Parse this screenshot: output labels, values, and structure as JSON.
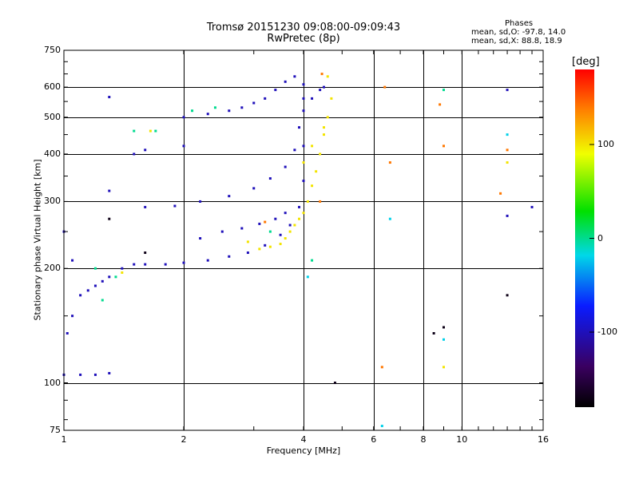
{
  "header": {
    "title_line1": "Tromsø 20151230 09:08:00-09:09:43",
    "title_line2": "RwPretec (8p)"
  },
  "stats": {
    "label": "Phases",
    "line_o": "mean, sd,O: -97.8, 14.0",
    "line_x": "mean, sd,X:  88.8, 18.9"
  },
  "chart_data": {
    "type": "scatter",
    "xlabel": "Frequency [MHz]",
    "ylabel": "Stationary phase Virtual Height [km]",
    "x_scale": "log",
    "y_scale": "log",
    "xlim": [
      1,
      16
    ],
    "ylim": [
      75,
      750
    ],
    "x_ticks": [
      1,
      2,
      4,
      6,
      8,
      10,
      16
    ],
    "x_tick_labels": [
      "1",
      "2",
      "4",
      "6",
      "8",
      "10",
      "16"
    ],
    "y_ticks": [
      75,
      100,
      200,
      300,
      400,
      500,
      600,
      750
    ],
    "y_tick_labels": [
      "75",
      "100",
      "200",
      "300",
      "400",
      "500",
      "600",
      "750"
    ],
    "grid": true,
    "colorbar": {
      "label": "[deg]",
      "range": [
        -180,
        180
      ],
      "ticks": [
        100,
        0,
        -100
      ],
      "tick_labels": [
        "100",
        "0",
        "-100"
      ]
    },
    "series": [
      {
        "color_value": -100,
        "points": [
          [
            1.0,
            105
          ],
          [
            1.1,
            105
          ],
          [
            1.2,
            105
          ],
          [
            1.3,
            106
          ],
          [
            1.02,
            135
          ],
          [
            1.05,
            150
          ],
          [
            1.1,
            170
          ],
          [
            1.15,
            175
          ],
          [
            1.2,
            180
          ],
          [
            1.25,
            185
          ],
          [
            1.3,
            190
          ],
          [
            1.4,
            200
          ],
          [
            1.5,
            205
          ],
          [
            1.6,
            205
          ],
          [
            1.8,
            205
          ],
          [
            2.0,
            207
          ],
          [
            2.3,
            210
          ],
          [
            2.6,
            215
          ],
          [
            2.9,
            220
          ],
          [
            3.2,
            230
          ],
          [
            3.5,
            245
          ],
          [
            3.7,
            260
          ],
          [
            3.9,
            290
          ],
          [
            4.0,
            340
          ],
          [
            4.0,
            420
          ],
          [
            4.0,
            520
          ],
          [
            4.0,
            610
          ],
          [
            1.6,
            290
          ],
          [
            1.9,
            292
          ],
          [
            2.2,
            300
          ],
          [
            2.6,
            310
          ],
          [
            3.0,
            325
          ],
          [
            3.3,
            345
          ],
          [
            3.6,
            370
          ],
          [
            3.8,
            410
          ],
          [
            3.9,
            470
          ],
          [
            4.0,
            560
          ],
          [
            2.0,
            500
          ],
          [
            2.3,
            510
          ],
          [
            2.6,
            520
          ],
          [
            2.8,
            530
          ],
          [
            3.0,
            545
          ],
          [
            3.2,
            560
          ],
          [
            3.4,
            590
          ],
          [
            3.6,
            620
          ],
          [
            3.8,
            640
          ],
          [
            1.3,
            565
          ],
          [
            1.5,
            400
          ],
          [
            1.6,
            410
          ],
          [
            1.3,
            320
          ],
          [
            2.0,
            420
          ],
          [
            2.2,
            240
          ],
          [
            2.5,
            250
          ],
          [
            2.8,
            255
          ],
          [
            3.1,
            262
          ],
          [
            3.4,
            270
          ],
          [
            3.6,
            280
          ],
          [
            4.2,
            560
          ],
          [
            4.4,
            590
          ],
          [
            4.5,
            600
          ],
          [
            13,
            590
          ],
          [
            13,
            275
          ],
          [
            15,
            290
          ],
          [
            1.0,
            250
          ],
          [
            1.05,
            210
          ]
        ]
      },
      {
        "color_value": 100,
        "points": [
          [
            3.1,
            225
          ],
          [
            3.3,
            228
          ],
          [
            3.5,
            232
          ],
          [
            3.6,
            240
          ],
          [
            3.7,
            250
          ],
          [
            3.8,
            260
          ],
          [
            3.9,
            270
          ],
          [
            4.0,
            280
          ],
          [
            4.1,
            300
          ],
          [
            4.2,
            330
          ],
          [
            4.3,
            360
          ],
          [
            4.4,
            400
          ],
          [
            4.5,
            450
          ],
          [
            4.6,
            500
          ],
          [
            4.7,
            560
          ],
          [
            4.6,
            640
          ],
          [
            1.4,
            195
          ],
          [
            2.9,
            235
          ],
          [
            4.0,
            380
          ],
          [
            4.2,
            420
          ],
          [
            4.5,
            470
          ],
          [
            9,
            110
          ],
          [
            13,
            380
          ],
          [
            1.65,
            460
          ]
        ]
      },
      {
        "color_value": 0,
        "points": [
          [
            1.2,
            200
          ],
          [
            1.35,
            190
          ],
          [
            1.5,
            460
          ],
          [
            1.7,
            460
          ],
          [
            2.1,
            520
          ],
          [
            2.4,
            530
          ],
          [
            3.3,
            250
          ],
          [
            4.2,
            210
          ],
          [
            9,
            590
          ],
          [
            1.25,
            165
          ]
        ]
      },
      {
        "color_value": 140,
        "points": [
          [
            4.45,
            650
          ],
          [
            6.4,
            600
          ],
          [
            8.8,
            540
          ],
          [
            9,
            420
          ],
          [
            4.4,
            300
          ],
          [
            3.2,
            265
          ],
          [
            6.6,
            380
          ],
          [
            13,
            410
          ],
          [
            6.3,
            110
          ],
          [
            12.5,
            315
          ]
        ]
      },
      {
        "color_value": -170,
        "points": [
          [
            1.3,
            270
          ],
          [
            1.6,
            220
          ],
          [
            13,
            170
          ],
          [
            9,
            140
          ],
          [
            8.5,
            135
          ],
          [
            4.8,
            100
          ]
        ]
      },
      {
        "color_value": -20,
        "points": [
          [
            6.3,
            77
          ],
          [
            13,
            450
          ],
          [
            9,
            130
          ],
          [
            4.1,
            190
          ],
          [
            6.6,
            270
          ]
        ]
      }
    ]
  }
}
